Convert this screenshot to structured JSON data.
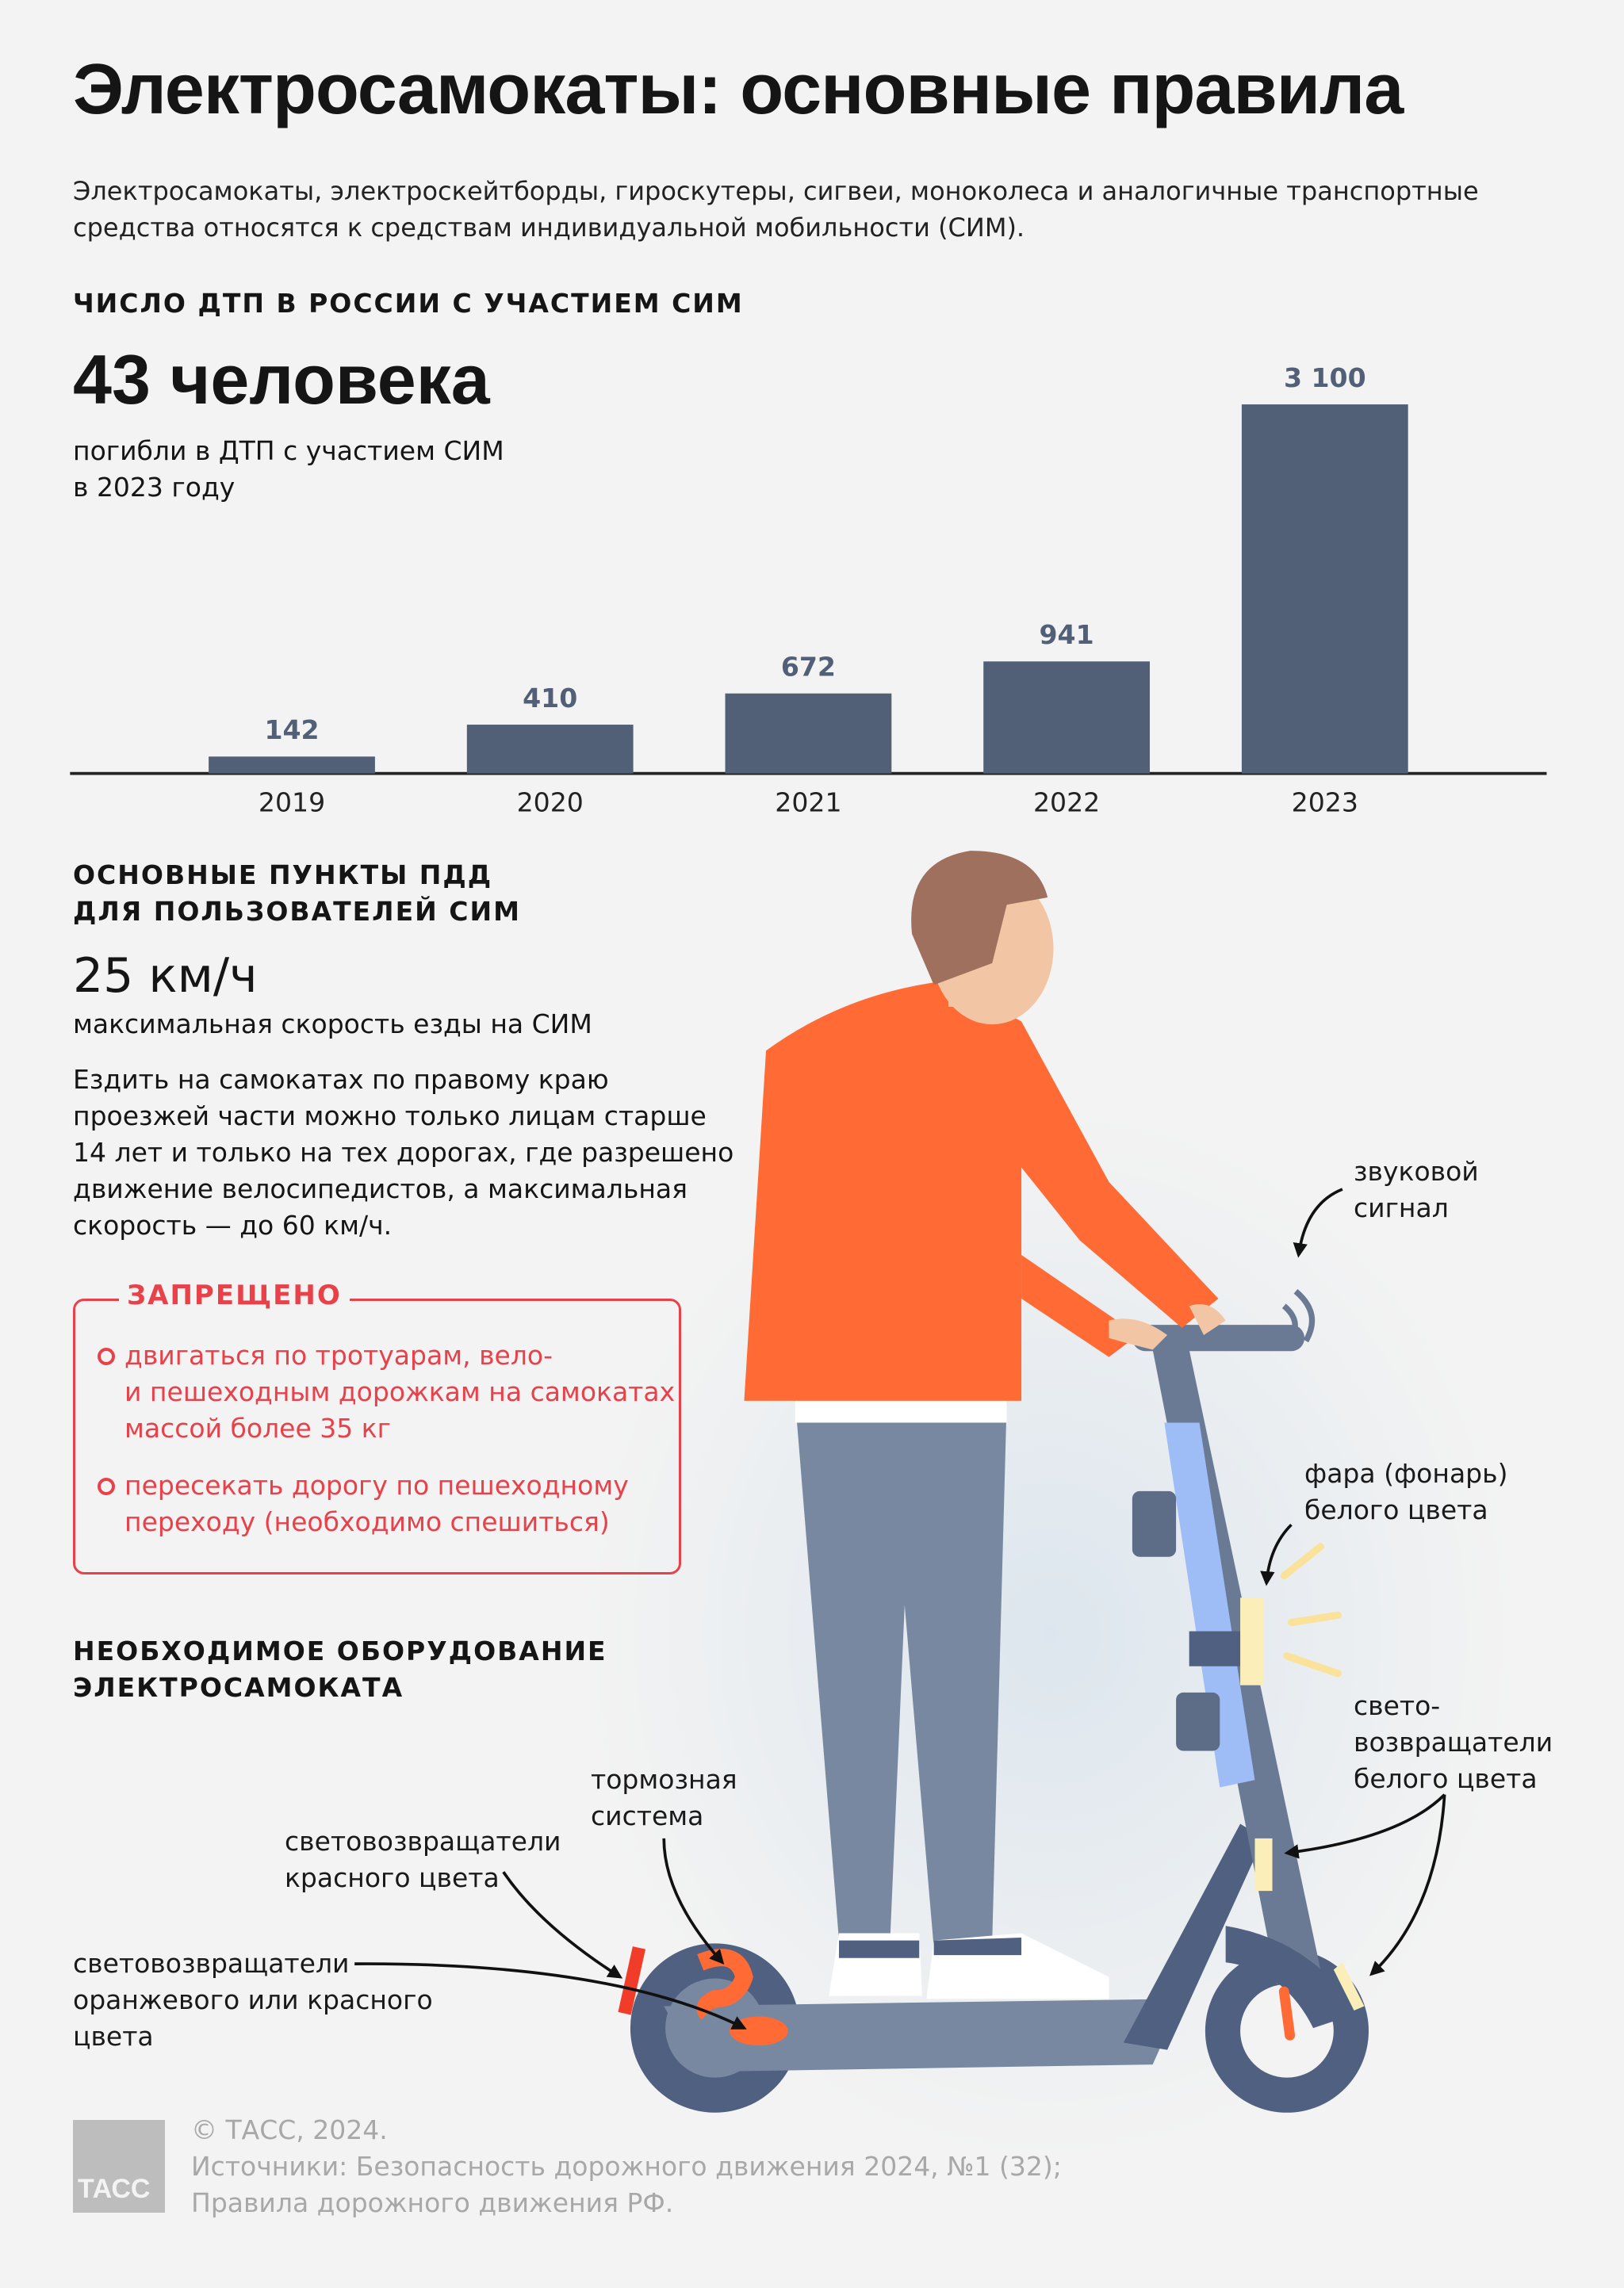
{
  "title": "Электросамокаты: основные правила",
  "subtitle": [
    "Электросамокаты, электроскейтборды, гироскутеры, сигвеи, моноколеса и аналогичные транспортные",
    "средства относятся к средствам индивидуальной мобильности (СИМ)."
  ],
  "stats_section": {
    "heading": "ЧИСЛО ДТП В РОССИИ С УЧАСТИЕМ СИМ",
    "highlight": "43 человека",
    "highlight_caption": [
      "погибли в ДТП с участием СИМ",
      "в 2023 году"
    ]
  },
  "chart_data": {
    "type": "bar",
    "title": "ЧИСЛО ДТП В РОССИИ С УЧАСТИЕМ СИМ",
    "categories": [
      "2019",
      "2020",
      "2021",
      "2022",
      "2023"
    ],
    "values": [
      142,
      410,
      672,
      941,
      3100
    ],
    "value_labels": [
      "142",
      "410",
      "672",
      "941",
      "3 100"
    ],
    "bar_color": "#526077",
    "ylim": [
      0,
      3100
    ],
    "grid": false
  },
  "rules_section": {
    "heading": [
      "ОСНОВНЫЕ ПУНКТЫ ПДД",
      "ДЛЯ ПОЛЬЗОВАТЕЛЕЙ СИМ"
    ],
    "speed": "25 км/ч",
    "speed_caption": "максимальная скорость езды на СИМ",
    "paragraph": [
      "Ездить на самокатах по правому краю",
      "проезжей части можно только лицам старше",
      "14 лет и только на тех дорогах, где разрешено",
      "движение велосипедистов, а максимальная",
      "скорость — до 60 км/ч."
    ],
    "forbidden": {
      "heading": "ЗАПРЕЩЕНО",
      "items": [
        [
          "двигаться по тротуарам, вело-",
          "и пешеходным дорожкам на самокатах",
          "массой более 35 кг"
        ],
        [
          "пересекать дорогу по пешеходному",
          "переходу (необходимо спешиться)"
        ]
      ],
      "color": "#e8414a"
    }
  },
  "equipment_section": {
    "heading": [
      "НЕОБХОДИМОЕ ОБОРУДОВАНИЕ",
      "ЭЛЕКТРОСАМОКАТА"
    ],
    "labels": {
      "horn": [
        "звуковой",
        "сигнал"
      ],
      "headlight": [
        "фара (фонарь)",
        "белого цвета"
      ],
      "white_reflectors": [
        "свето-",
        "возвращатели",
        "белого цвета"
      ],
      "brake": [
        "тормозная",
        "система"
      ],
      "red_reflectors": [
        "световозвращатели",
        "красного цвета"
      ],
      "orange_reflectors": [
        "световозвращатели",
        "оранжевого или красного",
        "цвета"
      ]
    }
  },
  "footer": {
    "logo": "ТАСС",
    "lines": [
      "© ТАСС, 2024.",
      "Источники: Безопасность дорожного движения 2024, №1 (32);",
      "Правила дорожного движения РФ."
    ]
  }
}
